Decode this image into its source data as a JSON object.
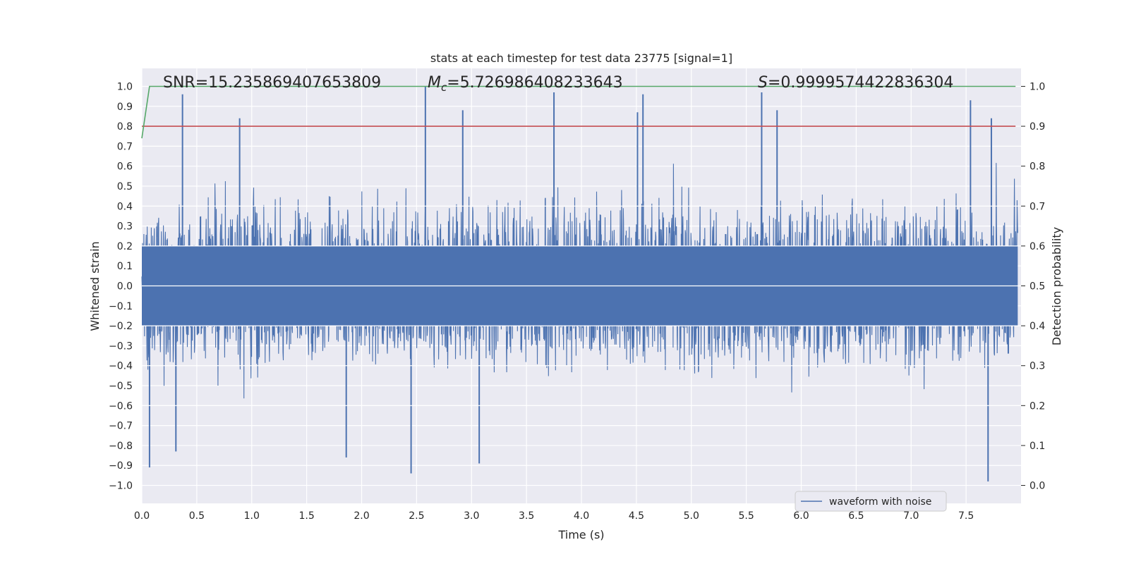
{
  "chart_data": {
    "type": "line",
    "title": "stats at each timestep for test data 23775 [signal=1]",
    "xlabel": "Time (s)",
    "ylabel": "Whitened strain",
    "y2label": "Detection probability",
    "xlim": [
      0.0,
      8.0
    ],
    "ylim": [
      -1.09,
      1.09
    ],
    "y2lim": [
      -0.045,
      1.045
    ],
    "grid": true,
    "x_ticks": [
      0.0,
      0.5,
      1.0,
      1.5,
      2.0,
      2.5,
      3.0,
      3.5,
      4.0,
      4.5,
      5.0,
      5.5,
      6.0,
      6.5,
      7.0,
      7.5
    ],
    "x_tick_labels": [
      "0.0",
      "0.5",
      "1.0",
      "1.5",
      "2.0",
      "2.5",
      "3.0",
      "3.5",
      "4.0",
      "4.5",
      "5.0",
      "5.5",
      "6.0",
      "6.5",
      "7.0",
      "7.5"
    ],
    "y_ticks": [
      1.0,
      0.9,
      0.8,
      0.7,
      0.6,
      0.5,
      0.4,
      0.3,
      0.2,
      0.1,
      0.0,
      -0.1,
      -0.2,
      -0.3,
      -0.4,
      -0.5,
      -0.6,
      -0.7,
      -0.8,
      -0.9,
      -1.0
    ],
    "y_tick_labels": [
      "1.0",
      "0.9",
      "0.8",
      "0.7",
      "0.6",
      "0.5",
      "0.4",
      "0.3",
      "0.2",
      "0.1",
      "0.0",
      "−0.1",
      "−0.2",
      "−0.3",
      "−0.4",
      "−0.5",
      "−0.6",
      "−0.7",
      "−0.8",
      "−0.9",
      "−1.0"
    ],
    "y2_ticks": [
      1.0,
      0.9,
      0.8,
      0.7,
      0.6,
      0.5,
      0.4,
      0.3,
      0.2,
      0.1,
      0.0
    ],
    "y2_tick_labels": [
      "1.0",
      "0.9",
      "0.8",
      "0.7",
      "0.6",
      "0.5",
      "0.4",
      "0.3",
      "0.2",
      "0.1",
      "0.0"
    ],
    "stats": {
      "snr_label": "SNR=15.235869407653809",
      "mc_symbol": "M",
      "mc_subscript": "c",
      "mc_value": "=5.726986408233643",
      "s_symbol": "S",
      "s_value": "=0.9999574422836304"
    },
    "series": [
      {
        "name": "waveform with noise",
        "axis": "left",
        "color": "#4c72b0",
        "note_points": [
          {
            "x": 0.37,
            "y": 0.96
          },
          {
            "x": 0.89,
            "y": 0.84
          },
          {
            "x": 2.58,
            "y": 1.0
          },
          {
            "x": 2.92,
            "y": 0.88
          },
          {
            "x": 3.75,
            "y": 0.97
          },
          {
            "x": 4.51,
            "y": 0.87
          },
          {
            "x": 4.56,
            "y": 0.96
          },
          {
            "x": 5.64,
            "y": 0.97
          },
          {
            "x": 5.78,
            "y": 0.88
          },
          {
            "x": 7.54,
            "y": 0.93
          },
          {
            "x": 7.73,
            "y": 0.84
          },
          {
            "x": 0.07,
            "y": -0.91
          },
          {
            "x": 0.31,
            "y": -0.83
          },
          {
            "x": 1.86,
            "y": -0.86
          },
          {
            "x": 2.45,
            "y": -0.94
          },
          {
            "x": 3.07,
            "y": -0.89
          },
          {
            "x": 7.7,
            "y": -0.98
          }
        ],
        "envelope_upper": 0.52,
        "envelope_lower": -0.52,
        "core_band": 0.2
      },
      {
        "name": "",
        "axis": "right",
        "color": "#55a868",
        "x": [
          0.0,
          0.07,
          7.95
        ],
        "y": [
          0.87,
          1.0,
          1.0
        ]
      },
      {
        "name": "",
        "axis": "right",
        "color": "#c44e52",
        "x": [
          0.0,
          7.95
        ],
        "y": [
          0.9,
          0.9
        ]
      }
    ],
    "legend": {
      "placement": "lower-right",
      "entries": [
        "waveform with noise"
      ]
    }
  },
  "colors": {
    "plot_background": "#eaeaf2",
    "grid": "#ffffff",
    "waveform": "#4c72b0",
    "probability": "#55a868",
    "threshold": "#c44e52"
  }
}
